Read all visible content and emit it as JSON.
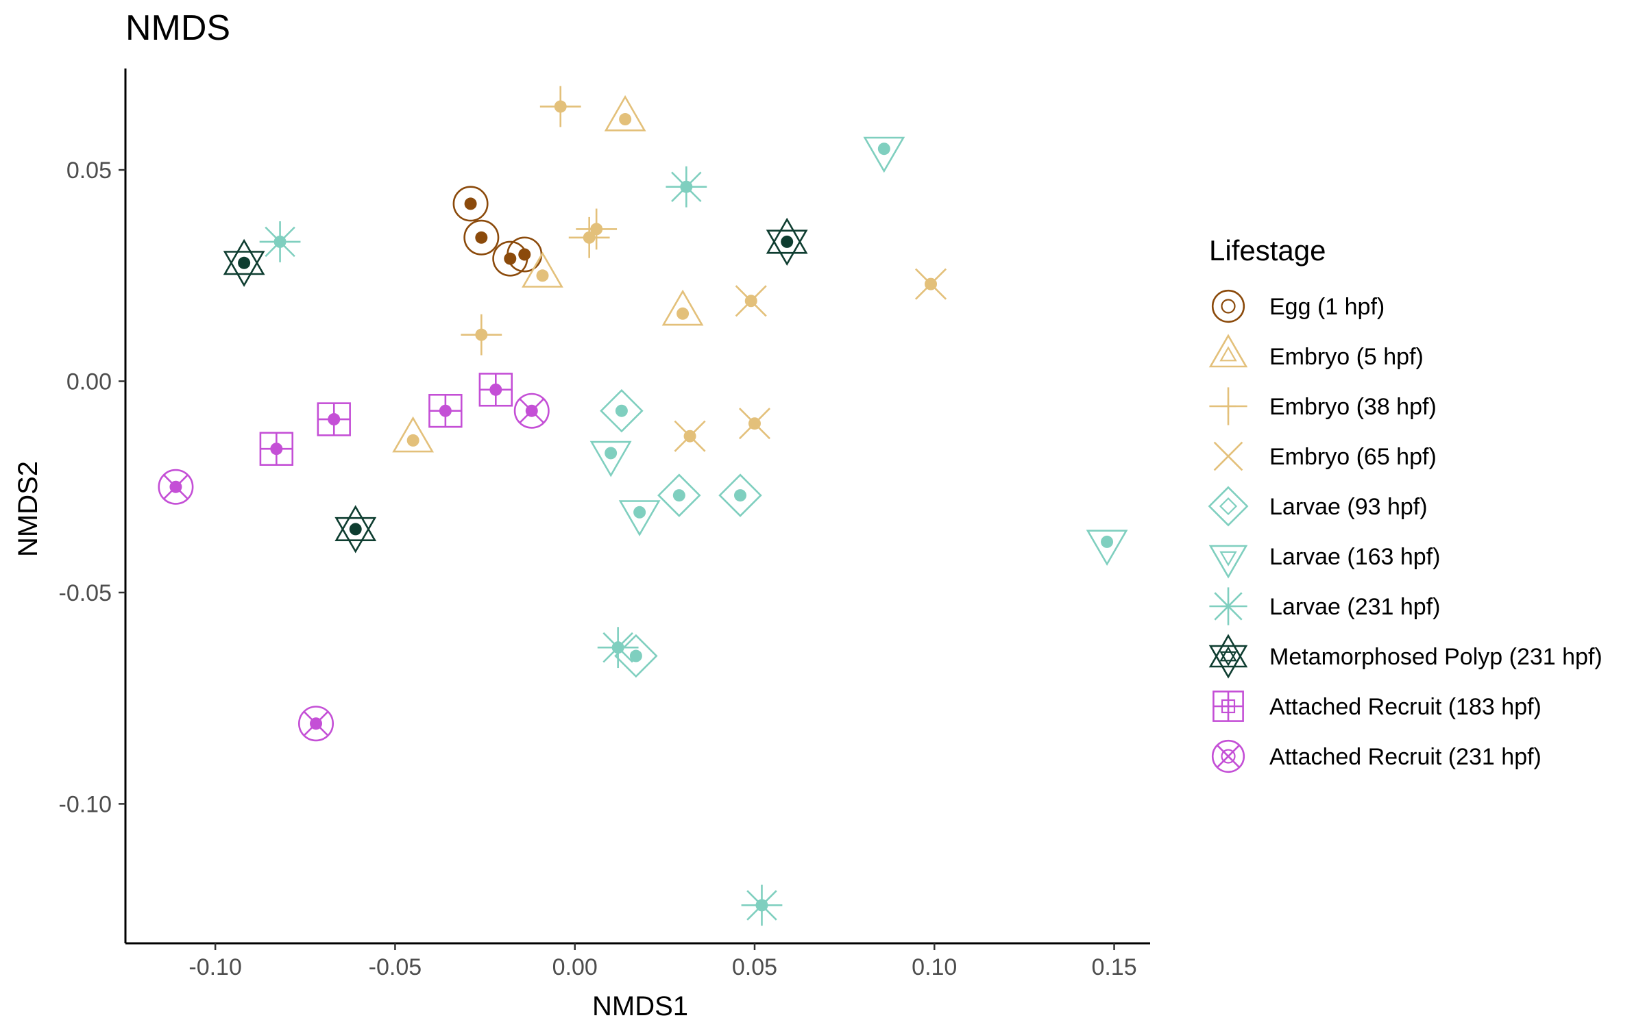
{
  "chart_data": {
    "type": "scatter",
    "title": "NMDS",
    "xlabel": "NMDS1",
    "ylabel": "NMDS2",
    "xlim": [
      -0.125,
      0.16
    ],
    "ylim": [
      -0.133,
      0.074
    ],
    "x_ticks": [
      -0.1,
      -0.05,
      0.0,
      0.05,
      0.1,
      0.15
    ],
    "x_tick_labels": [
      "-0.10",
      "-0.05",
      "0.00",
      "0.05",
      "0.10",
      "0.15"
    ],
    "y_ticks": [
      -0.1,
      -0.05,
      0.0,
      0.05
    ],
    "y_tick_labels": [
      "-0.10",
      "-0.05",
      "0.00",
      "0.05"
    ],
    "grid": false,
    "legend": {
      "title": "Lifestage",
      "placement": "right"
    },
    "series": [
      {
        "name": "Egg (1 hpf)",
        "color": "#8B4A0B",
        "shape": "circle-open",
        "dot": "#8B4A0B",
        "points": [
          [
            -0.029,
            0.042
          ],
          [
            -0.026,
            0.034
          ],
          [
            -0.018,
            0.029
          ],
          [
            -0.014,
            0.03
          ]
        ]
      },
      {
        "name": "Embryo (5 hpf)",
        "color": "#E3C07A",
        "shape": "triangle-up",
        "dot": "#E3C07A",
        "points": [
          [
            0.014,
            0.062
          ],
          [
            -0.009,
            0.025
          ],
          [
            0.03,
            0.016
          ],
          [
            -0.045,
            -0.014
          ]
        ]
      },
      {
        "name": "Embryo (38 hpf)",
        "color": "#E3C07A",
        "shape": "plus",
        "dot": "#E3C07A",
        "points": [
          [
            -0.004,
            0.065
          ],
          [
            0.004,
            0.034
          ],
          [
            0.006,
            0.036
          ],
          [
            -0.026,
            0.011
          ]
        ]
      },
      {
        "name": "Embryo (65 hpf)",
        "color": "#E3C07A",
        "shape": "cross",
        "dot": "#E3C07A",
        "points": [
          [
            0.049,
            0.019
          ],
          [
            0.099,
            0.023
          ],
          [
            0.032,
            -0.013
          ],
          [
            0.05,
            -0.01
          ]
        ]
      },
      {
        "name": "Larvae (93 hpf)",
        "color": "#7FCFBF",
        "shape": "diamond",
        "dot": "#7FCFBF",
        "points": [
          [
            0.013,
            -0.007
          ],
          [
            0.029,
            -0.027
          ],
          [
            0.046,
            -0.027
          ],
          [
            0.017,
            -0.065
          ]
        ]
      },
      {
        "name": "Larvae (163 hpf)",
        "color": "#7FCFBF",
        "shape": "triangle-down",
        "dot": "#7FCFBF",
        "points": [
          [
            0.086,
            0.055
          ],
          [
            0.01,
            -0.017
          ],
          [
            0.018,
            -0.031
          ],
          [
            0.148,
            -0.038
          ]
        ]
      },
      {
        "name": "Larvae (231 hpf)",
        "color": "#7FCFBF",
        "shape": "asterisk",
        "dot": "#7FCFBF",
        "points": [
          [
            0.031,
            0.046
          ],
          [
            -0.082,
            0.033
          ],
          [
            0.012,
            -0.063
          ],
          [
            0.052,
            -0.124
          ]
        ]
      },
      {
        "name": "Metamorphosed Polyp (231 hpf)",
        "color": "#0E3D30",
        "shape": "star-david",
        "dot": "#0E3D30",
        "points": [
          [
            0.059,
            0.033
          ],
          [
            -0.092,
            0.028
          ],
          [
            -0.061,
            -0.035
          ]
        ]
      },
      {
        "name": "Attached Recruit (183 hpf)",
        "color": "#C44FD6",
        "shape": "square-plus",
        "dot": "#C44FD6",
        "points": [
          [
            -0.022,
            -0.002
          ],
          [
            -0.036,
            -0.007
          ],
          [
            -0.067,
            -0.009
          ],
          [
            -0.083,
            -0.016
          ]
        ]
      },
      {
        "name": "Attached Recruit (231 hpf)",
        "color": "#C44FD6",
        "shape": "circle-x",
        "dot": "#C44FD6",
        "points": [
          [
            -0.012,
            -0.007
          ],
          [
            -0.111,
            -0.025
          ],
          [
            -0.072,
            -0.081
          ]
        ]
      }
    ]
  }
}
